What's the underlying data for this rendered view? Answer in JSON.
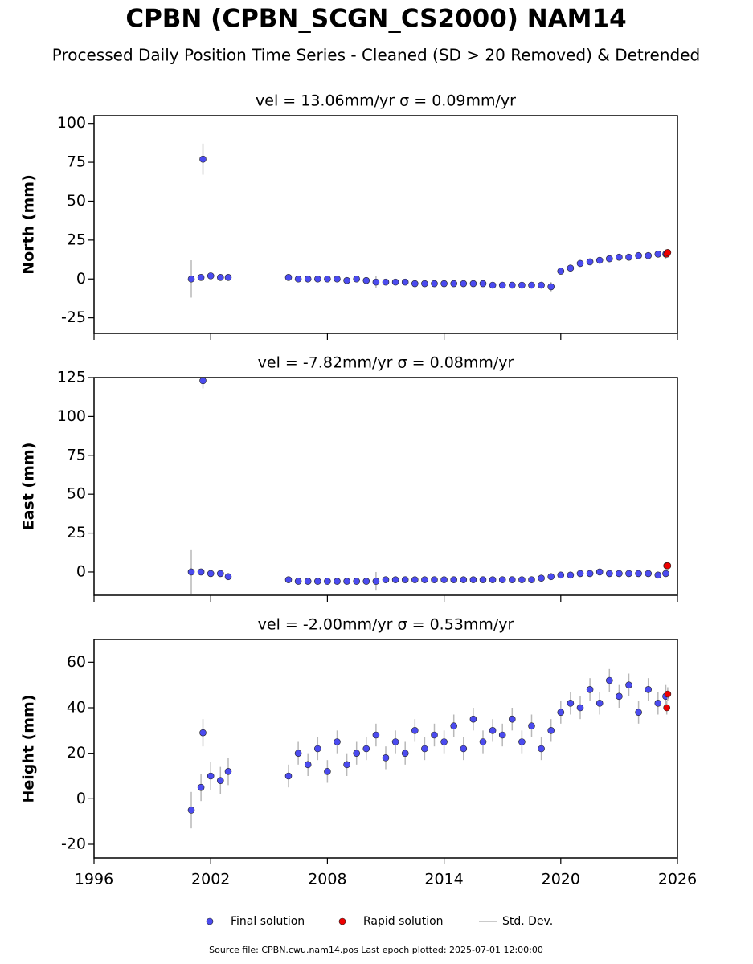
{
  "title": "CPBN (CPBN_SCGN_CS2000) NAM14",
  "subtitle": "Processed Daily Position Time Series - Cleaned (SD > 20 Removed) & Detrended",
  "source": "Source file: CPBN.cwu.nam14.pos  Last epoch plotted: 2025-07-01 12:00:00",
  "legend": [
    "Final solution",
    "Rapid solution",
    "Std. Dev."
  ],
  "errorbar_color": "#b8b8b8",
  "chart_data": [
    {
      "type": "scatter",
      "title": "vel = 13.06mm/yr   σ = 0.09mm/yr",
      "y_label": "North (mm)",
      "xlim": [
        1996,
        2026
      ],
      "xticks": [
        1996,
        2002,
        2008,
        2014,
        2020,
        2026
      ],
      "ylim": [
        -35,
        105
      ],
      "yticks": [
        -25,
        0,
        25,
        50,
        75,
        100
      ],
      "series": [
        {
          "color": "#4b4bef",
          "x": [
            2001.0,
            2001.5,
            2001.6,
            2002.0,
            2002.5,
            2002.9,
            2006.0,
            2006.5,
            2007.0,
            2007.5,
            2008.0,
            2008.5,
            2009.0,
            2009.5,
            2010.0,
            2010.5,
            2011.0,
            2011.5,
            2012.0,
            2012.5,
            2013.0,
            2013.5,
            2014.0,
            2014.5,
            2015.0,
            2015.5,
            2016.0,
            2016.5,
            2017.0,
            2017.5,
            2018.0,
            2018.5,
            2019.0,
            2019.5,
            2020.0,
            2020.5,
            2021.0,
            2021.5,
            2022.0,
            2022.5,
            2023.0,
            2023.5,
            2024.0,
            2024.5,
            2025.0,
            2025.4
          ],
          "values": [
            0,
            1,
            77,
            2,
            1,
            1,
            1,
            0,
            0,
            0,
            0,
            0,
            -1,
            0,
            -1,
            -2,
            -2,
            -2,
            -2,
            -3,
            -3,
            -3,
            -3,
            -3,
            -3,
            -3,
            -3,
            -4,
            -4,
            -4,
            -4,
            -4,
            -4,
            -5,
            5,
            7,
            10,
            11,
            12,
            13,
            14,
            14,
            15,
            15,
            16,
            16
          ],
          "errors": [
            12,
            2,
            10,
            2,
            2,
            2,
            2,
            1.5,
            1.5,
            1.5,
            1.5,
            1.5,
            1.5,
            1.5,
            1.5,
            4,
            1.5,
            1.5,
            1.5,
            1.5,
            1.5,
            1.5,
            1.5,
            1.5,
            1.5,
            1.5,
            1.5,
            1.5,
            1.5,
            1.5,
            1.5,
            1.5,
            1.5,
            3,
            2,
            1.5,
            1.5,
            1.5,
            1.5,
            1.5,
            1.5,
            1.5,
            1.5,
            1.5,
            1.5,
            3
          ]
        },
        {
          "color": "#ee0000",
          "x": [
            2025.45,
            2025.5
          ],
          "values": [
            16,
            17
          ],
          "errors": [
            1,
            1
          ]
        }
      ]
    },
    {
      "type": "scatter",
      "title": "vel = -7.82mm/yr   σ = 0.08mm/yr",
      "y_label": "East (mm)",
      "xlim": [
        1996,
        2026
      ],
      "xticks": [
        1996,
        2002,
        2008,
        2014,
        2020,
        2026
      ],
      "ylim": [
        -15,
        125
      ],
      "yticks": [
        0,
        25,
        50,
        75,
        100,
        125
      ],
      "series": [
        {
          "color": "#4b4bef",
          "x": [
            2001.0,
            2001.5,
            2001.6,
            2002.0,
            2002.5,
            2002.9,
            2006.0,
            2006.5,
            2007.0,
            2007.5,
            2008.0,
            2008.5,
            2009.0,
            2009.5,
            2010.0,
            2010.5,
            2011.0,
            2011.5,
            2012.0,
            2012.5,
            2013.0,
            2013.5,
            2014.0,
            2014.5,
            2015.0,
            2015.5,
            2016.0,
            2016.5,
            2017.0,
            2017.5,
            2018.0,
            2018.5,
            2019.0,
            2019.5,
            2020.0,
            2020.5,
            2021.0,
            2021.5,
            2022.0,
            2022.5,
            2023.0,
            2023.5,
            2024.0,
            2024.5,
            2025.0,
            2025.4
          ],
          "values": [
            0,
            0,
            123,
            -1,
            -1,
            -3,
            -5,
            -6,
            -6,
            -6,
            -6,
            -6,
            -6,
            -6,
            -6,
            -6,
            -5,
            -5,
            -5,
            -5,
            -5,
            -5,
            -5,
            -5,
            -5,
            -5,
            -5,
            -5,
            -5,
            -5,
            -5,
            -5,
            -4,
            -3,
            -2,
            -2,
            -1,
            -1,
            0,
            -1,
            -1,
            -1,
            -1,
            -1,
            -2,
            -1
          ],
          "errors": [
            14,
            2,
            5,
            2,
            2,
            2,
            2,
            2,
            2,
            2,
            2,
            2,
            2,
            2,
            2,
            6,
            2,
            2,
            2,
            2,
            2,
            2,
            2,
            2,
            2,
            2,
            2,
            2,
            2,
            2,
            2,
            2,
            2,
            2,
            2,
            2,
            2,
            2,
            2,
            2,
            2,
            2,
            2,
            2,
            2,
            2
          ]
        },
        {
          "color": "#ee0000",
          "x": [
            2025.45,
            2025.5
          ],
          "values": [
            4,
            4
          ],
          "errors": [
            1,
            1
          ]
        }
      ]
    },
    {
      "type": "scatter",
      "title": "vel = -2.00mm/yr   σ = 0.53mm/yr",
      "y_label": "Height (mm)",
      "xlim": [
        1996,
        2026
      ],
      "xticks": [
        1996,
        2002,
        2008,
        2014,
        2020,
        2026
      ],
      "ylim": [
        -26,
        70
      ],
      "yticks": [
        -20,
        0,
        20,
        40,
        60
      ],
      "series": [
        {
          "color": "#4b4bef",
          "x": [
            2001.0,
            2001.5,
            2001.6,
            2002.0,
            2002.5,
            2002.9,
            2006.0,
            2006.5,
            2007.0,
            2007.5,
            2008.0,
            2008.5,
            2009.0,
            2009.5,
            2010.0,
            2010.5,
            2011.0,
            2011.5,
            2012.0,
            2012.5,
            2013.0,
            2013.5,
            2014.0,
            2014.5,
            2015.0,
            2015.5,
            2016.0,
            2016.5,
            2017.0,
            2017.5,
            2018.0,
            2018.5,
            2019.0,
            2019.5,
            2020.0,
            2020.5,
            2021.0,
            2021.5,
            2022.0,
            2022.5,
            2023.0,
            2023.5,
            2024.0,
            2024.5,
            2025.0,
            2025.4
          ],
          "values": [
            -5,
            5,
            29,
            10,
            8,
            12,
            10,
            20,
            15,
            22,
            12,
            25,
            15,
            20,
            22,
            28,
            18,
            25,
            20,
            30,
            22,
            28,
            25,
            32,
            22,
            35,
            25,
            30,
            28,
            35,
            25,
            32,
            22,
            30,
            38,
            42,
            40,
            48,
            42,
            52,
            45,
            50,
            38,
            48,
            42,
            45
          ],
          "errors": [
            8,
            6,
            6,
            6,
            6,
            6,
            5,
            5,
            5,
            5,
            5,
            5,
            5,
            5,
            5,
            5,
            5,
            5,
            5,
            5,
            5,
            5,
            5,
            5,
            5,
            5,
            5,
            5,
            5,
            5,
            5,
            5,
            5,
            5,
            5,
            5,
            5,
            5,
            5,
            5,
            5,
            5,
            5,
            5,
            5,
            5
          ]
        },
        {
          "color": "#ee0000",
          "x": [
            2025.45,
            2025.5
          ],
          "values": [
            40,
            46
          ],
          "errors": [
            3,
            3
          ]
        }
      ]
    }
  ]
}
